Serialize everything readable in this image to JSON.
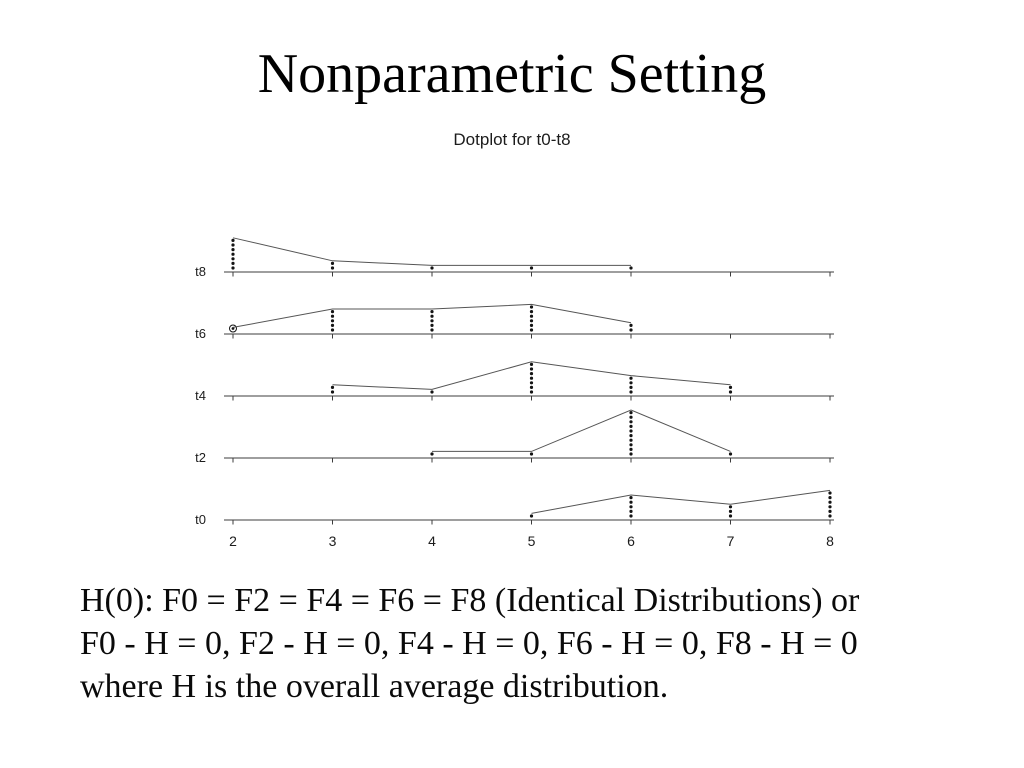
{
  "slide": {
    "title": "Nonparametric Setting"
  },
  "chart_data": {
    "type": "dotplot",
    "title": "Dotplot for t0-t8",
    "x_range": [
      2,
      8
    ],
    "x_ticks": [
      2,
      3,
      4,
      5,
      6,
      7,
      8
    ],
    "row_order_note": "rows listed top to bottom as drawn",
    "rows": [
      {
        "label": "t8",
        "points": [
          {
            "x": 2,
            "n": 7
          },
          {
            "x": 3,
            "n": 2
          },
          {
            "x": 4,
            "n": 1
          },
          {
            "x": 5,
            "n": 1
          },
          {
            "x": 6,
            "n": 1
          }
        ],
        "open_circle_x": null
      },
      {
        "label": "t6",
        "points": [
          {
            "x": 2,
            "n": 1
          },
          {
            "x": 3,
            "n": 5
          },
          {
            "x": 4,
            "n": 5
          },
          {
            "x": 5,
            "n": 6
          },
          {
            "x": 6,
            "n": 2
          }
        ],
        "open_circle_x": 2
      },
      {
        "label": "t4",
        "points": [
          {
            "x": 3,
            "n": 2
          },
          {
            "x": 4,
            "n": 1
          },
          {
            "x": 5,
            "n": 7
          },
          {
            "x": 6,
            "n": 4
          },
          {
            "x": 7,
            "n": 2
          }
        ],
        "open_circle_x": null
      },
      {
        "label": "t2",
        "points": [
          {
            "x": 4,
            "n": 1
          },
          {
            "x": 5,
            "n": 1
          },
          {
            "x": 6,
            "n": 10
          },
          {
            "x": 7,
            "n": 1
          }
        ],
        "open_circle_x": null
      },
      {
        "label": "t0",
        "points": [
          {
            "x": 5,
            "n": 1
          },
          {
            "x": 6,
            "n": 5
          },
          {
            "x": 7,
            "n": 3
          },
          {
            "x": 8,
            "n": 6
          }
        ],
        "open_circle_x": null
      }
    ],
    "colors": {
      "axis": "#3c3c3c",
      "dots": "#141414",
      "line": "#555555",
      "text": "#1c1c1c"
    },
    "legend": "none",
    "grid": false
  },
  "body": {
    "lines": [
      "H(0): F0 = F2 = F4 = F6 = F8 (Identical Distributions) or",
      "F0 - H = 0, F2 - H = 0, F4 - H = 0, F6 - H = 0, F8 - H = 0",
      "where H is the overall average distribution."
    ]
  }
}
